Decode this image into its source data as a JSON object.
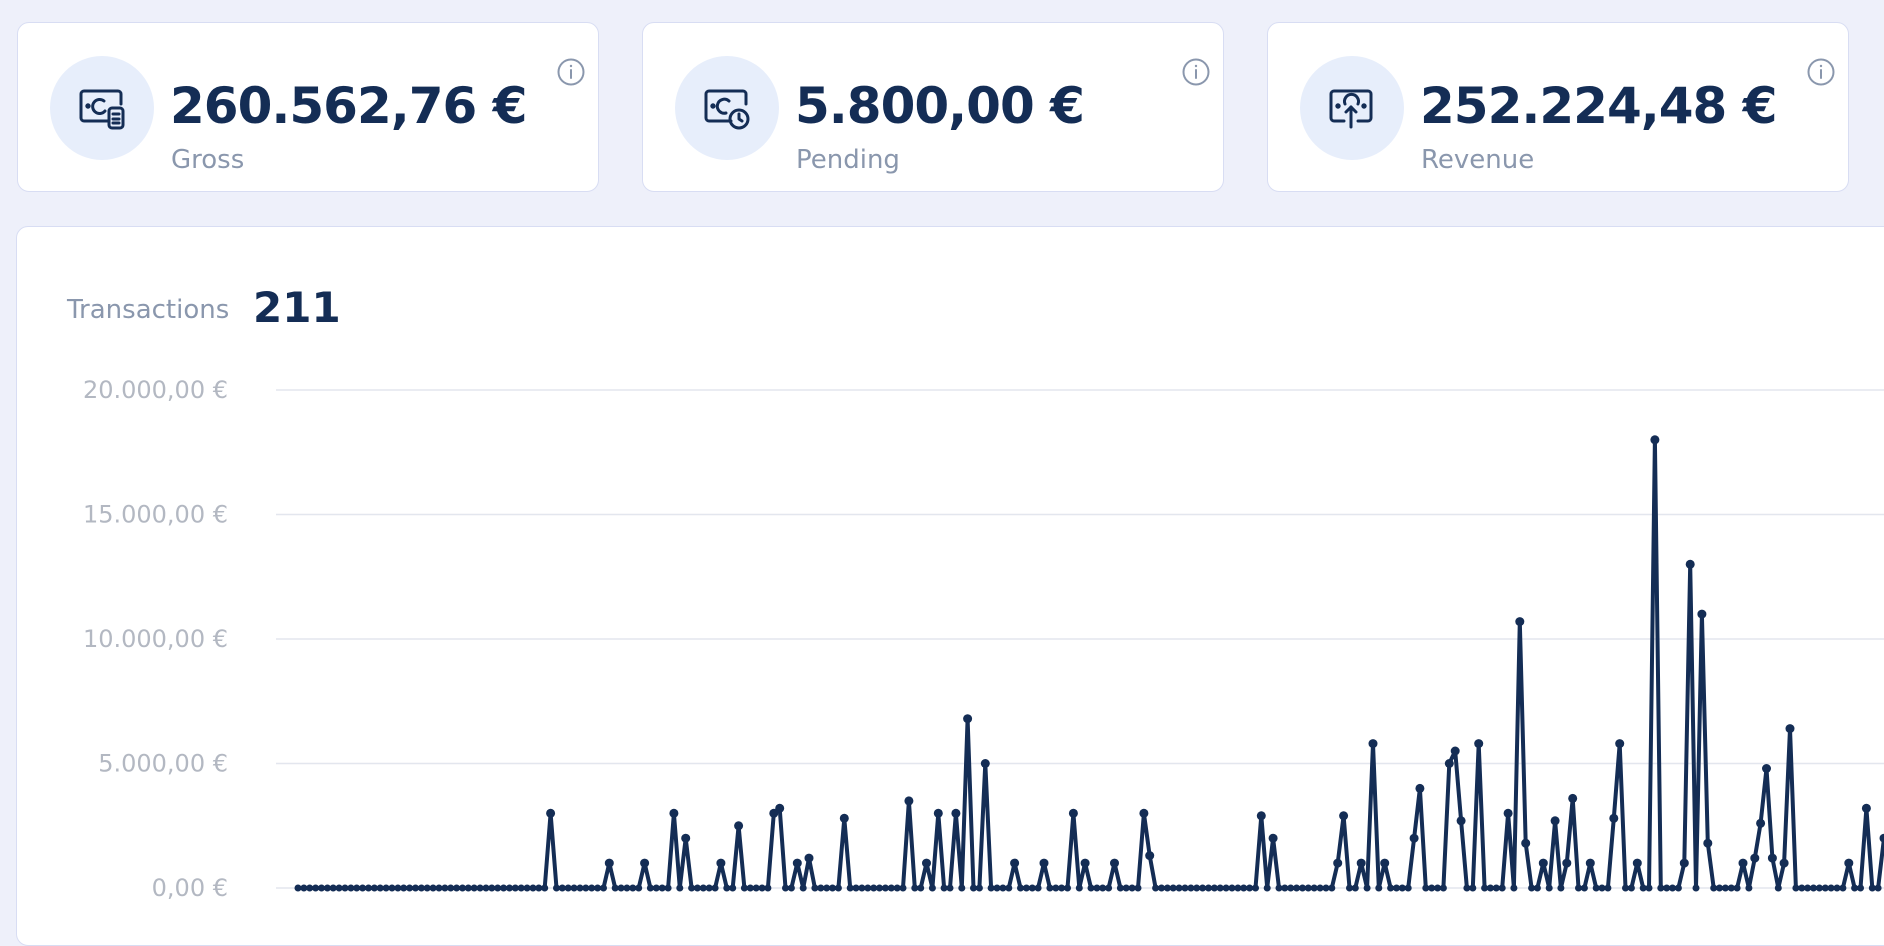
{
  "stats": [
    {
      "value": "260.562,76 €",
      "label": "Gross",
      "icon": "gross-icon"
    },
    {
      "value": "5.800,00 €",
      "label": "Pending",
      "icon": "pending-icon"
    },
    {
      "value": "252.224,48 €",
      "label": "Revenue",
      "icon": "revenue-icon"
    }
  ],
  "transactions": {
    "label": "Transactions",
    "count": "211"
  },
  "colors": {
    "line": "#142d55",
    "grid": "#e3e6ee",
    "tick": "#b3b8c2",
    "card_border": "#d8ddf3",
    "icon_circle": "#e7eefb"
  },
  "chart_data": {
    "type": "line",
    "ylim": [
      0,
      20000
    ],
    "yticks": [
      0,
      5000,
      10000,
      15000,
      20000
    ],
    "ytick_labels": [
      "0,00 €",
      "5.000,00 €",
      "10.000,00 €",
      "15.000,00 €",
      "20.000,00 €"
    ],
    "grid": true,
    "series": [
      {
        "values": [
          0,
          0,
          0,
          0,
          0,
          0,
          0,
          0,
          0,
          0,
          0,
          0,
          0,
          0,
          0,
          0,
          0,
          0,
          0,
          0,
          0,
          0,
          0,
          0,
          0,
          0,
          0,
          0,
          0,
          0,
          0,
          0,
          0,
          0,
          0,
          0,
          0,
          0,
          0,
          0,
          0,
          0,
          0,
          3000,
          0,
          0,
          0,
          0,
          0,
          0,
          0,
          0,
          0,
          1000,
          0,
          0,
          0,
          0,
          0,
          1000,
          0,
          0,
          0,
          0,
          3000,
          0,
          2000,
          0,
          0,
          0,
          0,
          0,
          1000,
          0,
          0,
          2500,
          0,
          0,
          0,
          0,
          0,
          3000,
          3200,
          0,
          0,
          1000,
          0,
          1200,
          0,
          0,
          0,
          0,
          0,
          2800,
          0,
          0,
          0,
          0,
          0,
          0,
          0,
          0,
          0,
          0,
          3500,
          0,
          0,
          1000,
          0,
          3000,
          0,
          0,
          3000,
          0,
          6800,
          0,
          0,
          5000,
          0,
          0,
          0,
          0,
          1000,
          0,
          0,
          0,
          0,
          1000,
          0,
          0,
          0,
          0,
          3000,
          0,
          1000,
          0,
          0,
          0,
          0,
          1000,
          0,
          0,
          0,
          0,
          3000,
          1300,
          0,
          0,
          0,
          0,
          0,
          0,
          0,
          0,
          0,
          0,
          0,
          0,
          0,
          0,
          0,
          0,
          0,
          0,
          2900,
          0,
          2000,
          0,
          0,
          0,
          0,
          0,
          0,
          0,
          0,
          0,
          0,
          1000,
          2900,
          0,
          0,
          1000,
          0,
          5800,
          0,
          1000,
          0,
          0,
          0,
          0,
          2000,
          4000,
          0,
          0,
          0,
          0,
          5000,
          5500,
          2700,
          0,
          0,
          5800,
          0,
          0,
          0,
          0,
          3000,
          0,
          10700,
          1800,
          0,
          0,
          1000,
          0,
          2700,
          0,
          1000,
          3600,
          0,
          0,
          1000,
          0,
          0,
          0,
          2800,
          5800,
          0,
          0,
          1000,
          0,
          0,
          18000,
          0,
          0,
          0,
          0,
          1000,
          13000,
          0,
          11000,
          1800,
          0,
          0,
          0,
          0,
          0,
          1000,
          0,
          1200,
          2600,
          4800,
          1200,
          0,
          1000,
          6400,
          0,
          0,
          0,
          0,
          0,
          0,
          0,
          0,
          0,
          1000,
          0,
          0,
          3200,
          0,
          0,
          2000
        ]
      }
    ]
  }
}
